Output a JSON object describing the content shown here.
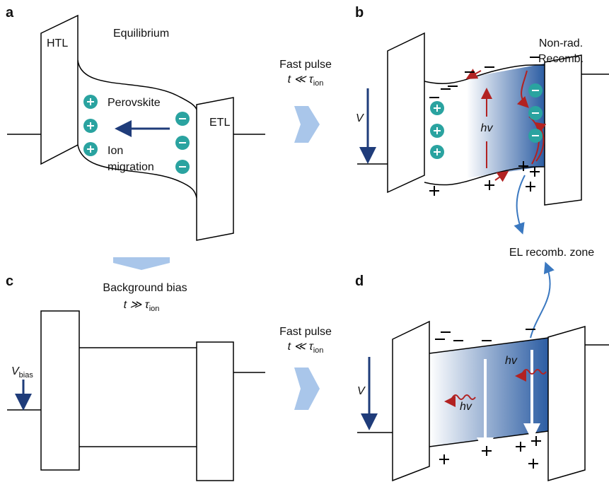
{
  "panel_a": {
    "label": "a",
    "title": "Equilibrium",
    "htl": "HTL",
    "etl": "ETL",
    "material": "Perovskite",
    "ion_migration": [
      "Ion",
      "migration"
    ]
  },
  "transition_ab": {
    "line1": "Fast pulse",
    "condition": "t ≪ τ",
    "condition_sub": "ion"
  },
  "panel_b": {
    "label": "b",
    "recombination": [
      "Non-rad.",
      "Recomb."
    ],
    "photon": "hv",
    "voltage": "V"
  },
  "zone_label": "EL recomb. zone",
  "panel_c": {
    "label": "c",
    "line1": "Background bias",
    "condition": "t ≫ τ",
    "condition_sub": "ion",
    "voltage": "V",
    "voltage_sub": "bias"
  },
  "transition_cd": {
    "line1": "Fast pulse",
    "condition": "t ≪ τ",
    "condition_sub": "ion"
  },
  "panel_d": {
    "label": "d",
    "voltage": "V",
    "photons": [
      "hv",
      "hv"
    ]
  }
}
